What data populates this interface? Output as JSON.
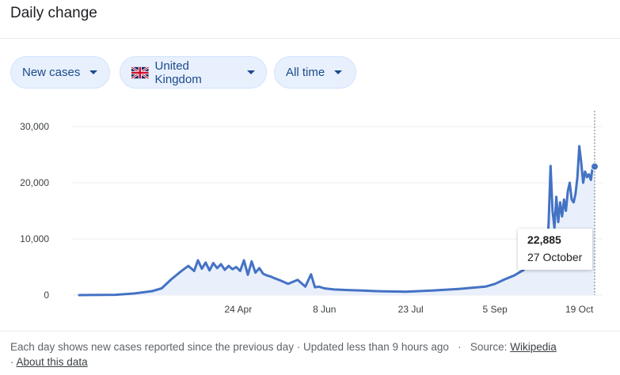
{
  "title": "Daily change",
  "filters": {
    "metric": "New cases",
    "region": "United Kingdom",
    "range": "All time"
  },
  "tooltip": {
    "value": "22,885",
    "date": "27 October"
  },
  "footer": {
    "note": "Each day shows new cases reported since the previous day",
    "updated": "Updated less than 9 hours ago",
    "source_label": "Source:",
    "source_link": "Wikipedia",
    "about": "About this data",
    "sep": "·"
  },
  "colors": {
    "line": "#4472c4",
    "fill": "#e9f0fb",
    "grid": "#eeeeee"
  },
  "chart_data": {
    "type": "area",
    "title": "",
    "xlabel": "",
    "ylabel": "",
    "ylim": [
      0,
      30000
    ],
    "y_ticks": [
      0,
      10000,
      20000,
      30000
    ],
    "y_tick_labels": [
      "0",
      "10,000",
      "20,000",
      "30,000"
    ],
    "x_ticks": [
      "2020-04-24",
      "2020-06-08",
      "2020-07-23",
      "2020-09-05",
      "2020-10-19"
    ],
    "x_tick_labels": [
      "24 Apr",
      "8 Jun",
      "23 Jul",
      "5 Sep",
      "19 Oct"
    ],
    "xlim": [
      "2020-02-01",
      "2020-10-27"
    ],
    "grid": true,
    "series": [
      {
        "x": [
          "2020-02-01",
          "2020-02-20",
          "2020-03-01",
          "2020-03-10",
          "2020-03-15",
          "2020-03-20",
          "2020-03-25",
          "2020-03-29",
          "2020-04-01",
          "2020-04-03",
          "2020-04-05",
          "2020-04-07",
          "2020-04-09",
          "2020-04-11",
          "2020-04-13",
          "2020-04-15",
          "2020-04-17",
          "2020-04-19",
          "2020-04-21",
          "2020-04-23",
          "2020-04-25",
          "2020-04-27",
          "2020-04-29",
          "2020-05-01",
          "2020-05-03",
          "2020-05-05",
          "2020-05-07",
          "2020-05-09",
          "2020-05-11",
          "2020-05-13",
          "2020-05-16",
          "2020-05-20",
          "2020-05-25",
          "2020-05-29",
          "2020-06-01",
          "2020-06-03",
          "2020-06-05",
          "2020-06-08",
          "2020-06-13",
          "2020-06-20",
          "2020-06-28",
          "2020-07-05",
          "2020-07-12",
          "2020-07-20",
          "2020-07-27",
          "2020-08-03",
          "2020-08-10",
          "2020-08-17",
          "2020-08-24",
          "2020-08-31",
          "2020-09-05",
          "2020-09-10",
          "2020-09-15",
          "2020-09-20",
          "2020-09-24",
          "2020-09-27",
          "2020-09-29",
          "2020-10-01",
          "2020-10-02",
          "2020-10-03",
          "2020-10-04",
          "2020-10-05",
          "2020-10-06",
          "2020-10-07",
          "2020-10-08",
          "2020-10-09",
          "2020-10-10",
          "2020-10-11",
          "2020-10-12",
          "2020-10-13",
          "2020-10-14",
          "2020-10-15",
          "2020-10-16",
          "2020-10-17",
          "2020-10-18",
          "2020-10-19",
          "2020-10-20",
          "2020-10-21",
          "2020-10-22",
          "2020-10-23",
          "2020-10-24",
          "2020-10-25",
          "2020-10-26",
          "2020-10-27"
        ],
        "values": [
          0,
          50,
          300,
          700,
          1200,
          2800,
          4200,
          5200,
          4300,
          6200,
          4700,
          5800,
          4400,
          5700,
          4800,
          5500,
          4500,
          5200,
          4600,
          5000,
          4300,
          6200,
          3600,
          6000,
          4000,
          4800,
          3800,
          3500,
          3300,
          3000,
          2600,
          2000,
          2700,
          1500,
          3700,
          1400,
          1500,
          1200,
          1000,
          900,
          800,
          700,
          650,
          600,
          700,
          800,
          950,
          1100,
          1300,
          1500,
          2000,
          2800,
          3500,
          4500,
          6500,
          7000,
          6800,
          6900,
          6500,
          13000,
          23000,
          15000,
          12000,
          17500,
          13000,
          16500,
          14000,
          17000,
          15000,
          18500,
          20000,
          17000,
          16500,
          18000,
          21000,
          26500,
          23500,
          20000,
          22000,
          21000,
          21500,
          20500,
          23000,
          22885
        ]
      }
    ]
  }
}
